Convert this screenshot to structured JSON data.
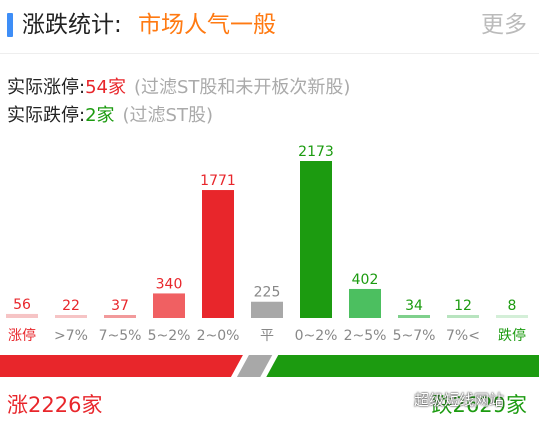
{
  "header": {
    "title": "涨跌统计:",
    "market": "市场人气一般",
    "more_label": "更多"
  },
  "stats": {
    "up_label": "实际涨停:",
    "up_value": "54家",
    "up_note": "(过滤ST股和未开板次新股)",
    "down_label": "实际跌停:",
    "down_value": "2家",
    "down_note": "(过滤ST股)"
  },
  "colors": {
    "up": "#e8262b",
    "up_light": "#f06062",
    "up_pale": "#f4b0b1",
    "flat": "#a8a8a8",
    "down": "#1c9b10",
    "down_light": "#4cbf60",
    "down_pale": "#a8dcae",
    "accent": "#ff7a12"
  },
  "chart_data": {
    "type": "bar",
    "categories": [
      "涨停",
      ">7%",
      "7~5%",
      "5~2%",
      "2~0%",
      "平",
      "0~2%",
      "2~5%",
      "5~7%",
      "7%<",
      "跌停"
    ],
    "values": [
      56,
      22,
      37,
      340,
      1771,
      225,
      2173,
      402,
      34,
      12,
      8
    ],
    "label_colors": [
      "#e8262b",
      "#888888",
      "#888888",
      "#888888",
      "#888888",
      "#888888",
      "#888888",
      "#888888",
      "#888888",
      "#888888",
      "#1c9b10"
    ],
    "value_colors": [
      "#e8262b",
      "#e8262b",
      "#e8262b",
      "#e8262b",
      "#e8262b",
      "#888888",
      "#1c9b10",
      "#1c9b10",
      "#1c9b10",
      "#1c9b10",
      "#1c9b10"
    ],
    "bar_colors": [
      "#f6c4c5",
      "#f6c4c5",
      "#f29a9b",
      "#f06062",
      "#e8262b",
      "#a8a8a8",
      "#1c9b10",
      "#4cbf60",
      "#7fd08c",
      "#b8e4bf",
      "#d4efd8"
    ]
  },
  "summary": {
    "up_total": "涨2226家",
    "down_total": "跌2629家",
    "up_count": 2226,
    "flat_count": 225,
    "down_count": 2629,
    "watermark": "超级短线网站"
  }
}
